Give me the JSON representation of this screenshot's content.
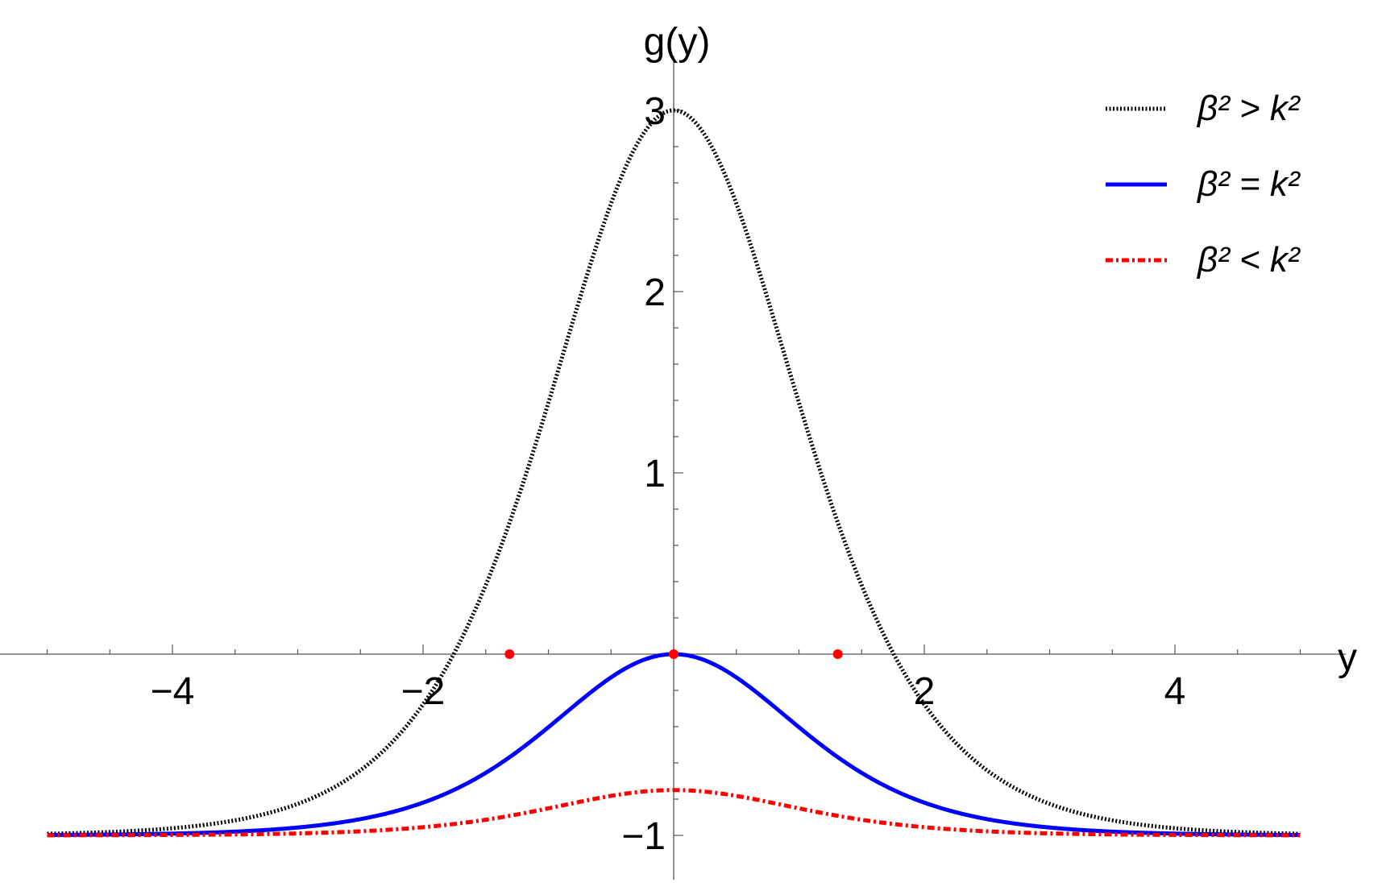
{
  "chart_data": {
    "type": "line",
    "title": "",
    "xlabel": "y",
    "ylabel": "g(y)",
    "xlim": [
      -5.3,
      5.3
    ],
    "ylim": [
      -1.2,
      3.3
    ],
    "x_ticks": [
      -4,
      -2,
      2,
      4
    ],
    "x_tick_labels": [
      "−4",
      "−2",
      "2",
      "4"
    ],
    "y_ticks": [
      -1,
      1,
      2,
      3
    ],
    "y_tick_labels": [
      "−1",
      "1",
      "2",
      "3"
    ],
    "x_range": [
      -5,
      5
    ],
    "grid": false,
    "legend_position": "top-right",
    "series": [
      {
        "name": "β² > k²",
        "style": "dotted",
        "color": "#000000",
        "formula": "-1 + 4 sech²(0.75 y)"
      },
      {
        "name": "β² = k²",
        "style": "solid",
        "color": "#0000ff",
        "formula": "-1 + sech²(0.75 y)"
      },
      {
        "name": "β² < k²",
        "style": "dash-dot",
        "color": "#ff0000",
        "formula": "-1 + 0.25 sech²(0.75 y)"
      }
    ],
    "marked_points": [
      {
        "x": -1.31,
        "y": 0
      },
      {
        "x": 0,
        "y": 0
      },
      {
        "x": 1.31,
        "y": 0
      }
    ],
    "marker_color": "#ff0000"
  },
  "legend": {
    "items": [
      {
        "label": "β² > k²",
        "color": "#000000",
        "style": "dotted"
      },
      {
        "label": "β² = k²",
        "color": "#0000ff",
        "style": "solid"
      },
      {
        "label": "β² < k²",
        "color": "#ff0000",
        "style": "dash-dot"
      }
    ]
  }
}
